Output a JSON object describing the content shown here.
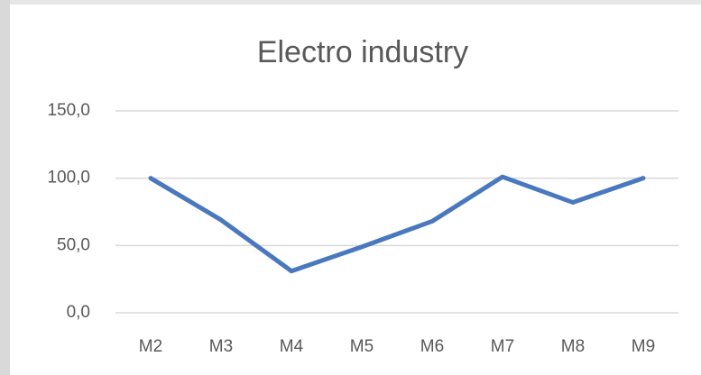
{
  "chart_data": {
    "type": "line",
    "title": "Electro industry",
    "categories": [
      "M2",
      "M3",
      "M4",
      "M5",
      "M6",
      "M7",
      "M8",
      "M9"
    ],
    "series": [
      {
        "name": "Electro industry",
        "color": "#4a78bf",
        "values": [
          100,
          69,
          31,
          49,
          68,
          101,
          82,
          100
        ]
      }
    ],
    "ylim": [
      0,
      150
    ],
    "yticks": [
      {
        "value": 0,
        "label": "0,0"
      },
      {
        "value": 50,
        "label": "50,0"
      },
      {
        "value": 100,
        "label": "100,0"
      },
      {
        "value": 150,
        "label": "150,0"
      }
    ],
    "grid": true
  }
}
